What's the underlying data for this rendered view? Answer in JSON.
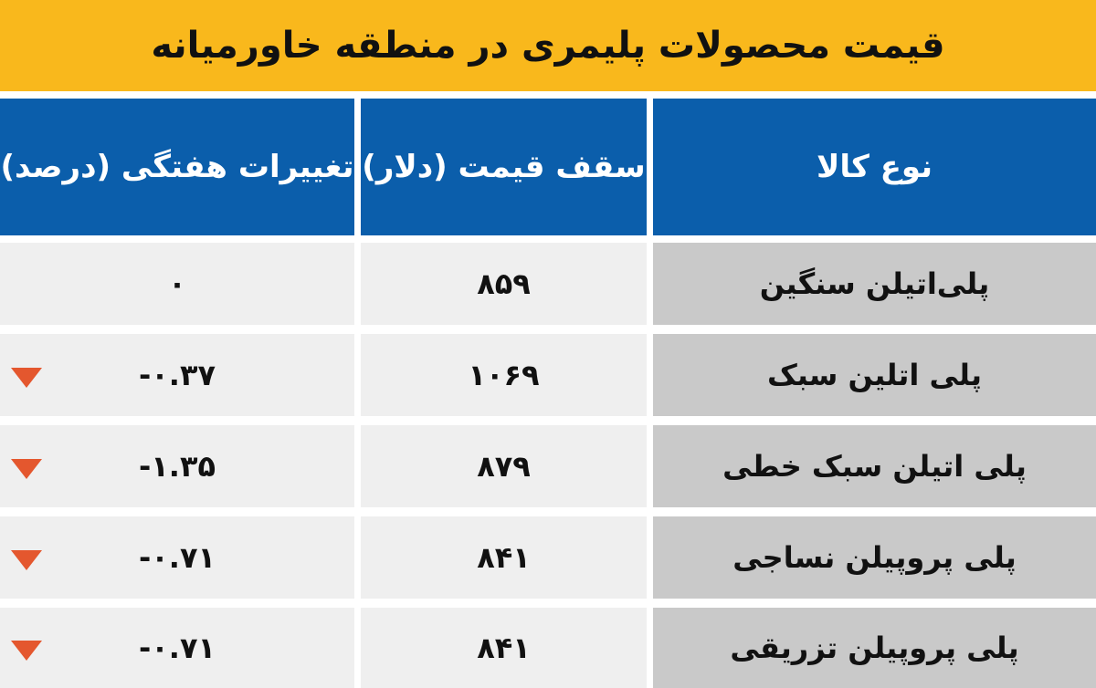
{
  "header": {
    "title": "قیمت محصولات پلیمری در منطقه خاورمیانه"
  },
  "table": {
    "columns": [
      "نوع کالا",
      "سقف قیمت (دلار)",
      "تغییرات هفتگی (درصد)"
    ],
    "rows": [
      [
        "پلی‌اتیلن سنگین",
        "۸۵۹",
        "۰"
      ],
      [
        "پلی اتلین سبک",
        "۱۰۶۹",
        "-۰.۳۷"
      ],
      [
        "پلی اتیلن سبک خطی",
        "۸۷۹",
        "-۱.۳۵"
      ],
      [
        "پلی پروپیلن نساجی",
        "۸۴۱",
        "-۰.۷۱"
      ],
      [
        "پلی پروپیلن تزریقی",
        "۸۴۱",
        "-۰.۷۱"
      ]
    ]
  }
}
